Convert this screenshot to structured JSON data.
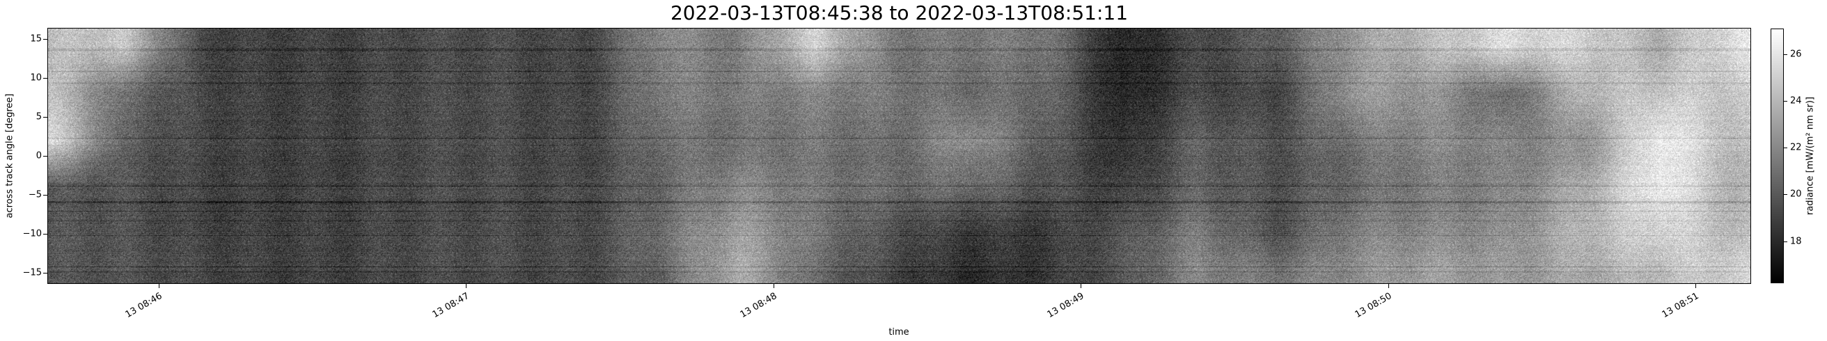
{
  "chart_data": {
    "type": "heatmap",
    "title": "2022-03-13T08:45:38 to 2022-03-13T08:51:11",
    "xlabel": "time",
    "ylabel": "across track angle [degree]",
    "colorbar_label": "radiance [mW/(m² nm sr)]",
    "colormap": "gray",
    "xlim": [
      "2022-03-13T08:45:38",
      "2022-03-13T08:51:11"
    ],
    "ylim": [
      -16.3,
      16.3
    ],
    "clim": [
      16.2,
      27.1
    ],
    "x_ticks": [
      {
        "time": "08:46:00",
        "label": "13 08:46"
      },
      {
        "time": "08:47:00",
        "label": "13 08:47"
      },
      {
        "time": "08:48:00",
        "label": "13 08:48"
      },
      {
        "time": "08:49:00",
        "label": "13 08:49"
      },
      {
        "time": "08:50:00",
        "label": "13 08:50"
      },
      {
        "time": "08:51:00",
        "label": "13 08:51"
      }
    ],
    "y_ticks": [
      15,
      10,
      5,
      0,
      -5,
      -10,
      -15
    ],
    "y_tick_labels": [
      "15",
      "10",
      "5",
      "0",
      "−5",
      "−10",
      "−15"
    ],
    "colorbar_ticks": [
      26,
      24,
      22,
      20,
      18
    ],
    "colorbar_tick_labels": [
      "26",
      "24",
      "22",
      "20",
      "18"
    ],
    "grid": false,
    "angles": [
      14,
      8,
      2,
      -4,
      -10,
      -15
    ],
    "times": [
      "08:45:38",
      "08:45:53",
      "08:46:08",
      "08:46:23",
      "08:46:38",
      "08:46:53",
      "08:47:08",
      "08:47:23",
      "08:47:38",
      "08:47:53",
      "08:48:08",
      "08:48:23",
      "08:48:38",
      "08:48:53",
      "08:49:08",
      "08:49:23",
      "08:49:38",
      "08:49:53",
      "08:50:08",
      "08:50:23",
      "08:50:38",
      "08:50:53",
      "08:51:08"
    ],
    "radiance_approx": [
      [
        23.8,
        24.4,
        25.5,
        19.5,
        19.5,
        19.5
      ],
      [
        24.4,
        20.6,
        20.0,
        19.5,
        19.5,
        19.5
      ],
      [
        19.5,
        19.5,
        19.5,
        19.3,
        19.3,
        19.5
      ],
      [
        19.3,
        19.3,
        19.3,
        19.3,
        19.3,
        19.3
      ],
      [
        18.9,
        18.9,
        18.9,
        18.9,
        18.9,
        18.9
      ],
      [
        19.1,
        19.1,
        19.1,
        19.1,
        19.1,
        19.1
      ],
      [
        19.5,
        19.5,
        19.5,
        19.5,
        19.5,
        19.5
      ],
      [
        19.5,
        19.5,
        19.5,
        19.7,
        19.7,
        19.7
      ],
      [
        22.2,
        21.7,
        21.1,
        20.6,
        21.1,
        20.6
      ],
      [
        21.1,
        21.1,
        20.6,
        21.7,
        22.7,
        23.3
      ],
      [
        24.9,
        21.7,
        21.1,
        21.1,
        21.1,
        20.6
      ],
      [
        21.7,
        21.7,
        21.1,
        21.1,
        20.0,
        19.5
      ],
      [
        21.7,
        21.1,
        22.7,
        21.1,
        18.9,
        18.4
      ],
      [
        21.1,
        20.6,
        20.0,
        19.5,
        18.4,
        18.4
      ],
      [
        17.3,
        17.3,
        17.8,
        18.4,
        19.5,
        19.5
      ],
      [
        19.5,
        19.5,
        20.6,
        20.6,
        21.7,
        22.2
      ],
      [
        20.6,
        19.5,
        20.0,
        20.0,
        20.0,
        21.7
      ],
      [
        22.7,
        22.7,
        21.1,
        20.6,
        21.7,
        22.2
      ],
      [
        23.8,
        22.2,
        21.7,
        21.1,
        21.7,
        22.7
      ],
      [
        25.5,
        20.6,
        21.7,
        21.7,
        22.2,
        22.7
      ],
      [
        25.5,
        24.4,
        22.7,
        23.8,
        24.4,
        23.8
      ],
      [
        23.8,
        24.9,
        26.6,
        26.6,
        25.5,
        24.4
      ],
      [
        25.5,
        24.4,
        23.8,
        23.3,
        23.8,
        24.9
      ]
    ]
  }
}
